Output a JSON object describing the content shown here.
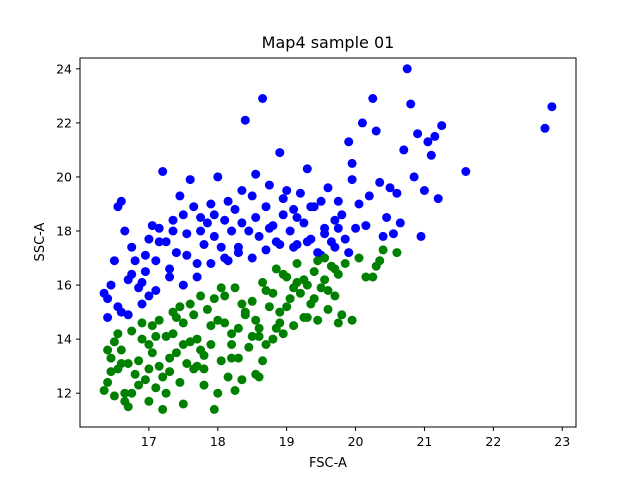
{
  "chart_data": {
    "type": "scatter",
    "title": "Map4 sample 01",
    "xlabel": "FSC-A",
    "ylabel": "SSC-A",
    "xlim": [
      16.0,
      23.2
    ],
    "ylim": [
      10.75,
      24.4
    ],
    "xticks": [
      17,
      18,
      19,
      20,
      21,
      22,
      23
    ],
    "yticks": [
      12,
      14,
      16,
      18,
      20,
      22,
      24
    ],
    "grid": false,
    "legend": "none",
    "series": [
      {
        "color": "#0000ff",
        "points": [
          [
            16.35,
            15.7
          ],
          [
            16.4,
            15.5
          ],
          [
            16.45,
            16.0
          ],
          [
            16.5,
            16.9
          ],
          [
            16.55,
            18.9
          ],
          [
            16.6,
            19.1
          ],
          [
            16.65,
            18.0
          ],
          [
            16.7,
            16.2
          ],
          [
            16.75,
            17.4
          ],
          [
            16.8,
            16.9
          ],
          [
            16.85,
            15.9
          ],
          [
            16.9,
            15.3
          ],
          [
            16.95,
            16.5
          ],
          [
            17.0,
            17.7
          ],
          [
            17.05,
            18.2
          ],
          [
            17.1,
            16.9
          ],
          [
            17.15,
            18.1
          ],
          [
            17.2,
            20.2
          ],
          [
            17.25,
            17.6
          ],
          [
            17.3,
            16.3
          ],
          [
            17.35,
            18.0
          ],
          [
            17.4,
            17.2
          ],
          [
            17.45,
            19.3
          ],
          [
            17.5,
            18.6
          ],
          [
            17.55,
            17.9
          ],
          [
            17.6,
            19.9
          ],
          [
            17.65,
            18.9
          ],
          [
            17.7,
            16.8
          ],
          [
            17.75,
            18.5
          ],
          [
            17.8,
            17.5
          ],
          [
            17.85,
            18.3
          ],
          [
            17.9,
            19.0
          ],
          [
            17.95,
            18.6
          ],
          [
            18.0,
            20.0
          ],
          [
            18.05,
            17.4
          ],
          [
            18.1,
            18.4
          ],
          [
            18.15,
            16.9
          ],
          [
            18.2,
            18.0
          ],
          [
            18.25,
            18.8
          ],
          [
            18.3,
            17.4
          ],
          [
            18.35,
            19.5
          ],
          [
            18.4,
            22.1
          ],
          [
            18.45,
            18.0
          ],
          [
            18.5,
            19.3
          ],
          [
            18.55,
            20.1
          ],
          [
            18.6,
            17.8
          ],
          [
            18.65,
            22.9
          ],
          [
            18.7,
            18.9
          ],
          [
            18.75,
            19.7
          ],
          [
            18.8,
            18.2
          ],
          [
            18.85,
            17.6
          ],
          [
            18.9,
            20.9
          ],
          [
            18.95,
            18.6
          ],
          [
            19.0,
            19.5
          ],
          [
            19.05,
            18.0
          ],
          [
            19.1,
            18.8
          ],
          [
            19.15,
            17.5
          ],
          [
            19.2,
            19.4
          ],
          [
            19.25,
            18.3
          ],
          [
            19.3,
            20.3
          ],
          [
            19.35,
            17.7
          ],
          [
            19.4,
            18.9
          ],
          [
            19.45,
            17.2
          ],
          [
            19.5,
            19.1
          ],
          [
            19.55,
            18.1
          ],
          [
            19.6,
            19.6
          ],
          [
            19.65,
            17.6
          ],
          [
            19.7,
            18.4
          ],
          [
            19.75,
            19.1
          ],
          [
            19.8,
            18.6
          ],
          [
            19.85,
            17.7
          ],
          [
            19.9,
            21.3
          ],
          [
            19.95,
            20.5
          ],
          [
            20.0,
            18.1
          ],
          [
            20.05,
            19.0
          ],
          [
            20.1,
            22.0
          ],
          [
            20.15,
            18.2
          ],
          [
            20.2,
            19.3
          ],
          [
            20.25,
            22.9
          ],
          [
            20.3,
            21.7
          ],
          [
            20.35,
            19.8
          ],
          [
            20.4,
            17.8
          ],
          [
            20.45,
            18.5
          ],
          [
            20.5,
            19.6
          ],
          [
            20.55,
            17.9
          ],
          [
            20.6,
            19.4
          ],
          [
            20.65,
            18.3
          ],
          [
            20.7,
            21.0
          ],
          [
            20.75,
            24.0
          ],
          [
            20.8,
            22.7
          ],
          [
            20.85,
            20.0
          ],
          [
            20.9,
            21.6
          ],
          [
            20.95,
            17.8
          ],
          [
            21.0,
            19.5
          ],
          [
            21.05,
            21.3
          ],
          [
            21.1,
            20.8
          ],
          [
            21.15,
            21.5
          ],
          [
            21.2,
            19.2
          ],
          [
            21.25,
            21.9
          ],
          [
            21.6,
            20.2
          ],
          [
            22.75,
            21.8
          ],
          [
            22.85,
            22.6
          ],
          [
            16.4,
            14.8
          ],
          [
            16.6,
            15.0
          ],
          [
            16.7,
            14.9
          ],
          [
            16.9,
            16.1
          ],
          [
            17.0,
            15.6
          ],
          [
            17.1,
            15.8
          ],
          [
            17.3,
            16.6
          ],
          [
            17.5,
            16.0
          ],
          [
            17.7,
            16.3
          ],
          [
            17.9,
            16.8
          ],
          [
            18.1,
            17.0
          ],
          [
            18.3,
            17.2
          ],
          [
            18.5,
            17.0
          ],
          [
            18.7,
            17.3
          ],
          [
            18.9,
            17.5
          ],
          [
            19.1,
            17.4
          ],
          [
            19.3,
            17.6
          ],
          [
            19.5,
            17.1
          ],
          [
            19.7,
            17.4
          ],
          [
            19.9,
            17.2
          ],
          [
            16.55,
            15.2
          ],
          [
            16.75,
            16.4
          ],
          [
            16.95,
            17.1
          ],
          [
            17.15,
            17.6
          ],
          [
            17.35,
            18.4
          ],
          [
            17.55,
            17.1
          ],
          [
            17.75,
            18.0
          ],
          [
            17.95,
            17.8
          ],
          [
            18.15,
            19.1
          ],
          [
            18.35,
            18.3
          ],
          [
            18.55,
            18.5
          ],
          [
            18.75,
            18.1
          ],
          [
            18.95,
            19.2
          ],
          [
            19.15,
            18.5
          ],
          [
            19.35,
            18.9
          ],
          [
            19.55,
            17.9
          ],
          [
            19.75,
            18.1
          ],
          [
            19.95,
            19.9
          ]
        ]
      },
      {
        "color": "#008000",
        "points": [
          [
            16.35,
            12.1
          ],
          [
            16.4,
            12.4
          ],
          [
            16.45,
            13.3
          ],
          [
            16.5,
            13.9
          ],
          [
            16.55,
            12.9
          ],
          [
            16.6,
            13.6
          ],
          [
            16.65,
            12.0
          ],
          [
            16.7,
            11.5
          ],
          [
            16.75,
            14.3
          ],
          [
            16.8,
            12.7
          ],
          [
            16.85,
            13.2
          ],
          [
            16.9,
            14.0
          ],
          [
            16.95,
            12.5
          ],
          [
            17.0,
            13.8
          ],
          [
            17.05,
            14.5
          ],
          [
            17.1,
            12.2
          ],
          [
            17.15,
            13.0
          ],
          [
            17.2,
            11.4
          ],
          [
            17.25,
            14.1
          ],
          [
            17.3,
            12.8
          ],
          [
            17.35,
            15.0
          ],
          [
            17.4,
            13.5
          ],
          [
            17.45,
            12.4
          ],
          [
            17.5,
            14.6
          ],
          [
            17.55,
            13.1
          ],
          [
            17.6,
            15.3
          ],
          [
            17.65,
            12.9
          ],
          [
            17.7,
            14.0
          ],
          [
            17.75,
            13.6
          ],
          [
            17.8,
            12.3
          ],
          [
            17.85,
            15.1
          ],
          [
            17.9,
            13.8
          ],
          [
            17.95,
            11.4
          ],
          [
            18.0,
            14.7
          ],
          [
            18.05,
            13.2
          ],
          [
            18.1,
            15.6
          ],
          [
            18.15,
            12.6
          ],
          [
            18.2,
            14.2
          ],
          [
            18.25,
            15.9
          ],
          [
            18.3,
            13.3
          ],
          [
            18.35,
            12.5
          ],
          [
            18.4,
            14.9
          ],
          [
            18.45,
            13.7
          ],
          [
            18.5,
            15.4
          ],
          [
            18.55,
            12.7
          ],
          [
            18.6,
            14.4
          ],
          [
            18.65,
            16.1
          ],
          [
            18.7,
            13.8
          ],
          [
            18.75,
            15.2
          ],
          [
            18.8,
            14.0
          ],
          [
            18.85,
            16.6
          ],
          [
            18.9,
            15.0
          ],
          [
            18.95,
            14.2
          ],
          [
            19.0,
            16.3
          ],
          [
            19.05,
            15.5
          ],
          [
            19.1,
            14.5
          ],
          [
            19.15,
            16.8
          ],
          [
            19.2,
            15.7
          ],
          [
            19.25,
            14.8
          ],
          [
            19.3,
            16.0
          ],
          [
            19.35,
            15.3
          ],
          [
            19.4,
            16.5
          ],
          [
            19.45,
            14.7
          ],
          [
            19.5,
            15.9
          ],
          [
            19.55,
            16.2
          ],
          [
            19.6,
            15.1
          ],
          [
            19.65,
            16.7
          ],
          [
            19.7,
            15.6
          ],
          [
            19.75,
            16.4
          ],
          [
            19.8,
            14.9
          ],
          [
            19.85,
            16.8
          ],
          [
            19.95,
            14.7
          ],
          [
            20.05,
            17.0
          ],
          [
            20.15,
            16.3
          ],
          [
            20.25,
            16.3
          ],
          [
            20.3,
            16.7
          ],
          [
            20.35,
            16.9
          ],
          [
            20.4,
            17.3
          ],
          [
            20.6,
            17.2
          ],
          [
            16.4,
            13.6
          ],
          [
            16.55,
            14.2
          ],
          [
            16.7,
            13.1
          ],
          [
            16.85,
            12.3
          ],
          [
            17.0,
            11.7
          ],
          [
            17.15,
            14.7
          ],
          [
            17.3,
            13.3
          ],
          [
            17.45,
            15.2
          ],
          [
            17.6,
            13.9
          ],
          [
            17.75,
            15.6
          ],
          [
            17.9,
            14.5
          ],
          [
            18.05,
            15.9
          ],
          [
            18.2,
            13.8
          ],
          [
            18.35,
            15.3
          ],
          [
            18.5,
            14.1
          ],
          [
            18.65,
            13.2
          ],
          [
            18.8,
            15.7
          ],
          [
            18.95,
            16.4
          ],
          [
            19.1,
            15.9
          ],
          [
            19.25,
            16.2
          ],
          [
            19.4,
            15.5
          ],
          [
            19.55,
            17.0
          ],
          [
            19.7,
            16.6
          ],
          [
            16.45,
            12.8
          ],
          [
            16.6,
            13.1
          ],
          [
            16.75,
            12.0
          ],
          [
            16.9,
            14.6
          ],
          [
            17.05,
            13.5
          ],
          [
            17.2,
            12.6
          ],
          [
            17.35,
            14.2
          ],
          [
            17.5,
            13.8
          ],
          [
            17.65,
            14.9
          ],
          [
            17.8,
            13.4
          ],
          [
            17.95,
            15.5
          ],
          [
            18.1,
            14.6
          ],
          [
            18.25,
            12.1
          ],
          [
            18.4,
            15.0
          ],
          [
            18.55,
            14.7
          ],
          [
            18.7,
            15.8
          ],
          [
            18.85,
            14.4
          ],
          [
            19.0,
            15.2
          ],
          [
            19.15,
            16.1
          ],
          [
            19.3,
            14.8
          ],
          [
            19.45,
            16.9
          ],
          [
            19.6,
            15.8
          ],
          [
            19.75,
            14.6
          ],
          [
            17.0,
            12.9
          ],
          [
            17.25,
            12.0
          ],
          [
            17.5,
            11.6
          ],
          [
            17.8,
            12.9
          ],
          [
            18.2,
            13.3
          ],
          [
            18.6,
            12.6
          ],
          [
            16.5,
            11.9
          ],
          [
            16.65,
            11.7
          ],
          [
            17.1,
            14.1
          ],
          [
            17.4,
            14.8
          ],
          [
            17.7,
            13.0
          ],
          [
            18.0,
            12.0
          ],
          [
            18.3,
            14.4
          ],
          [
            18.6,
            14.1
          ],
          [
            18.9,
            14.6
          ]
        ]
      }
    ]
  }
}
